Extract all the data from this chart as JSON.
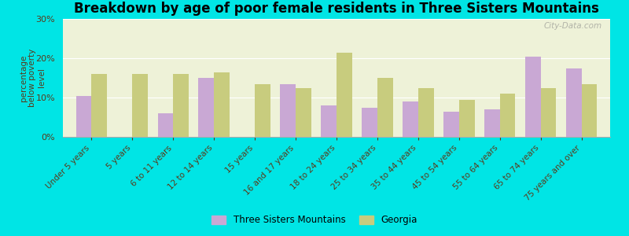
{
  "categories": [
    "Under 5 years",
    "5 years",
    "6 to 11 years",
    "12 to 14 years",
    "15 years",
    "16 and 17 years",
    "18 to 24 years",
    "25 to 34 years",
    "35 to 44 years",
    "45 to 54 years",
    "55 to 64 years",
    "65 to 74 years",
    "75 years and over"
  ],
  "tsm_values": [
    10.5,
    0.1,
    6.0,
    15.0,
    0.1,
    13.5,
    8.0,
    7.5,
    9.0,
    6.5,
    7.0,
    20.5,
    17.5
  ],
  "ga_values": [
    16.0,
    16.0,
    16.0,
    16.5,
    13.5,
    12.5,
    21.5,
    15.0,
    12.5,
    9.5,
    11.0,
    12.5,
    13.5
  ],
  "tsm_color": "#c9a8d4",
  "ga_color": "#c8cc7e",
  "title": "Breakdown by age of poor female residents in Three Sisters Mountains",
  "ylabel": "percentage\nbelow poverty\nlevel",
  "ylim": [
    0,
    30
  ],
  "yticks": [
    0,
    10,
    20,
    30
  ],
  "yticklabels": [
    "0%",
    "10%",
    "20%",
    "30%"
  ],
  "legend_tsm": "Three Sisters Mountains",
  "legend_ga": "Georgia",
  "bg_color": "#00e5e5",
  "plot_bg_color": "#eef2d8",
  "title_fontsize": 12,
  "bar_width": 0.38,
  "watermark": "City-Data.com"
}
